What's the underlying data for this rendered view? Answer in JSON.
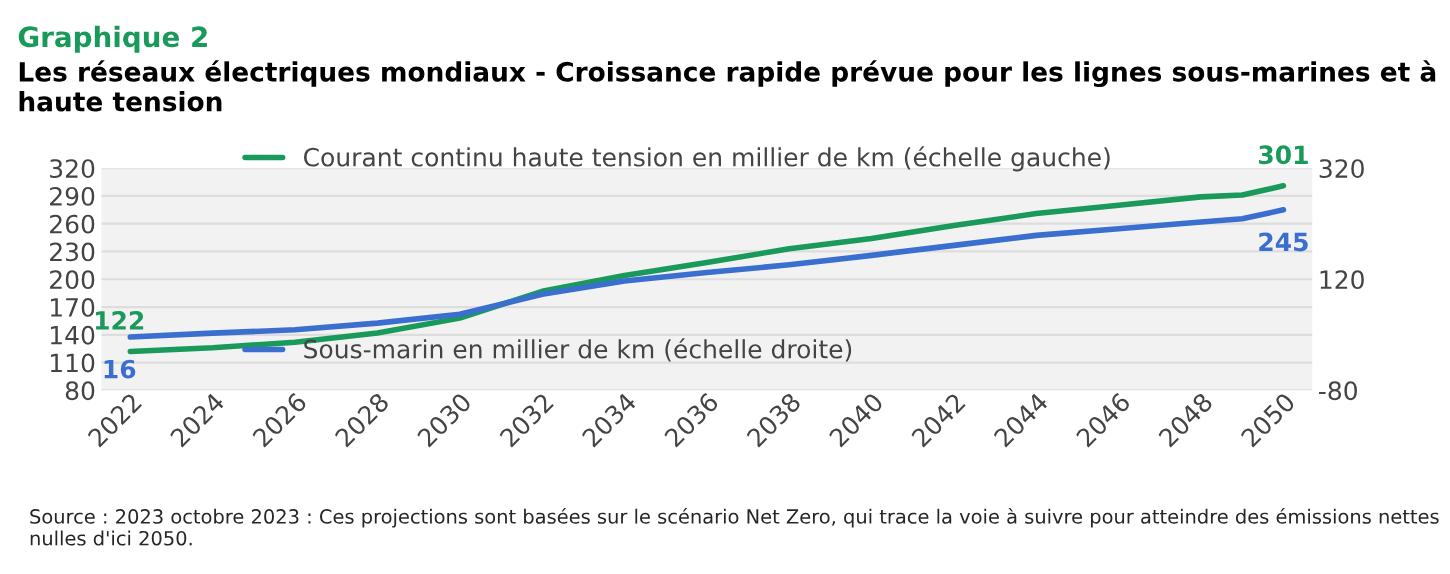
{
  "chart_data": {
    "type": "line",
    "title": "Graphique 2",
    "subtitle": "Les réseaux électriques mondiaux - Croissance rapide prévue pour les lignes sous-marines et à haute tension",
    "x": [
      2022,
      2024,
      2026,
      2028,
      2030,
      2032,
      2034,
      2036,
      2038,
      2040,
      2042,
      2044,
      2046,
      2048,
      2049,
      2050
    ],
    "series": [
      {
        "name": "Courant continu haute tension en millier de km (échelle gauche)",
        "color": "#1a9a5a",
        "values": [
          122,
          126,
          132,
          142,
          158,
          187,
          204,
          218,
          233,
          244,
          258,
          271,
          280,
          289,
          291,
          301
        ],
        "value_labels": [
          "122",
          null,
          null,
          null,
          null,
          null,
          null,
          null,
          null,
          null,
          null,
          null,
          null,
          null,
          null,
          "301"
        ]
      },
      {
        "name": "Sous-marin en millier de km (échelle droite)",
        "color": "#3a6fd0",
        "axis": "y2",
        "values": [
          16,
          23,
          29,
          41,
          57,
          93,
          117,
          132,
          146,
          163,
          181,
          199,
          211,
          223,
          229,
          245
        ],
        "value_labels": [
          "16",
          null,
          null,
          null,
          null,
          null,
          null,
          null,
          null,
          null,
          null,
          null,
          null,
          null,
          null,
          "245"
        ]
      }
    ],
    "xlim": [
      2021.3,
      2050.7
    ],
    "xticks": [
      2022,
      2024,
      2026,
      2028,
      2030,
      2032,
      2034,
      2036,
      2038,
      2040,
      2042,
      2044,
      2046,
      2048,
      2050
    ],
    "ylim": [
      80,
      320
    ],
    "yticks": [
      80,
      110,
      140,
      170,
      200,
      230,
      260,
      290,
      320
    ],
    "y2lim": [
      -80,
      320
    ],
    "y2ticks": [
      -80,
      120,
      320
    ],
    "grid": "y",
    "legend": "left",
    "marker": "none",
    "line_style": "solid",
    "annotations": [
      "Source : 2023 octobre 2023 : Ces projections sont basées sur le scénario Net Zero, qui trace la voie à suivre pour atteindre des émissions nettes nulles d'ici 2050."
    ]
  }
}
